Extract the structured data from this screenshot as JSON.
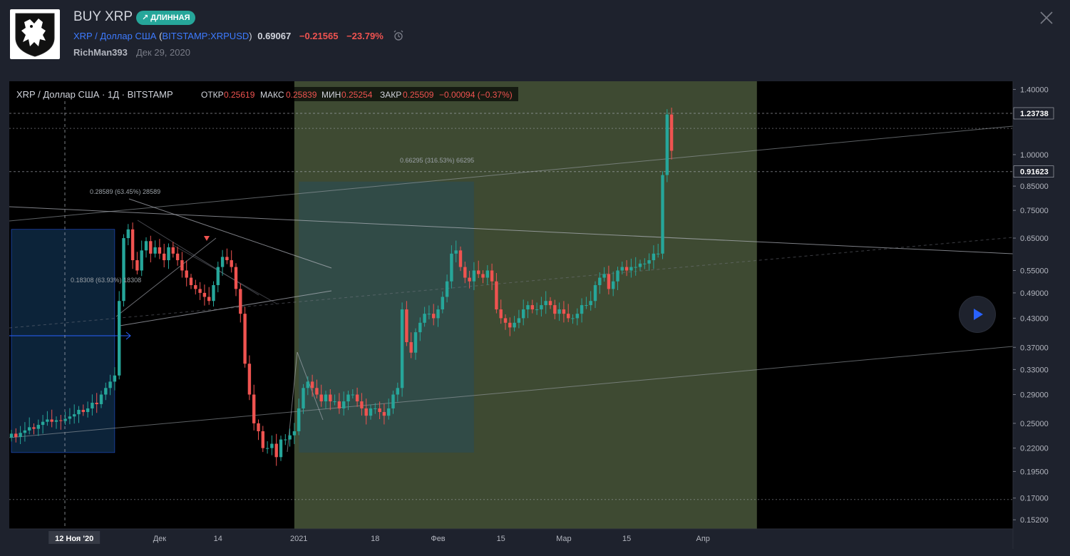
{
  "header": {
    "title": "BUY XRP",
    "badge": "↗ ДЛИННАЯ",
    "symbol_name": "XRP / Доллар США",
    "paren_open": "(",
    "symbol_ticker": "BITSTAMP:XRPUSD",
    "paren_close": ")",
    "price": "0.69067",
    "change": "−0.21565",
    "change_pct": "−23.79%",
    "author": "RichMan393",
    "date": "Дек 29, 2020"
  },
  "legend": {
    "symbol": "XRP / Доллар США · 1Д · BITSTAMP",
    "open_label": "ОТКР",
    "open_value": "0.25619",
    "high_label": "МАКС",
    "high_value": "0.25839",
    "low_label": "МИН",
    "low_value": "0.25254",
    "close_label": "ЗАКР",
    "close_value": "0.25509",
    "change": "−0.00094 (−0.37%)"
  },
  "icons": {
    "alarm": "alarm-clock-icon",
    "close": "close-icon",
    "play": "play-icon",
    "logo": "lion-crest-logo"
  },
  "colors": {
    "up": "#26a69a",
    "down": "#ef5350",
    "long_zone": "#3e4a32",
    "teal_box": "#2f4b4b",
    "blue_box": "#0f2a44",
    "accent_blue": "#2962ff"
  },
  "chart_data": {
    "type": "candlestick",
    "symbol": "XRP / Доллар США",
    "interval": "1Д",
    "exchange": "BITSTAMP",
    "y_scale": "log",
    "ylim": [
      0.145,
      1.46
    ],
    "y_ticks": [
      "1.40000",
      "1.23738",
      "1.00000",
      "0.91623",
      "0.85000",
      "0.75000",
      "0.65000",
      "0.55000",
      "0.49000",
      "0.43000",
      "0.37000",
      "0.33000",
      "0.29000",
      "0.25000",
      "0.22000",
      "0.19500",
      "0.17000",
      "0.15200"
    ],
    "y_tick_values": [
      1.4,
      1.23738,
      1.0,
      0.91623,
      0.85,
      0.75,
      0.65,
      0.55,
      0.49,
      0.43,
      0.37,
      0.33,
      0.29,
      0.25,
      0.22,
      0.195,
      0.17,
      0.152
    ],
    "highlighted_prices": [
      "1.23738",
      "0.91623"
    ],
    "x_labels": [
      "12 Ноя '20",
      "Дек",
      "14",
      "2021",
      "18",
      "Фев",
      "15",
      "Мар",
      "15",
      "Апр"
    ],
    "x_label_dates": [
      "2020-11-12",
      "2020-12-01",
      "2020-12-14",
      "2021-01-01",
      "2021-01-18",
      "2021-02-01",
      "2021-02-15",
      "2021-03-01",
      "2021-03-15",
      "2021-04-01"
    ],
    "annotations": [
      "0.28589 (63.45%) 28589",
      "0.18308 (63.93%) 18308",
      "0.66295 (316.53%) 66295"
    ],
    "closes_first_date": "2020-10-29",
    "closes": [
      0.237,
      0.233,
      0.238,
      0.241,
      0.245,
      0.243,
      0.248,
      0.252,
      0.255,
      0.252,
      0.254,
      0.253,
      0.256,
      0.259,
      0.262,
      0.268,
      0.265,
      0.27,
      0.278,
      0.276,
      0.29,
      0.3,
      0.31,
      0.32,
      0.47,
      0.65,
      0.68,
      0.58,
      0.55,
      0.61,
      0.64,
      0.6,
      0.62,
      0.6,
      0.58,
      0.62,
      0.6,
      0.58,
      0.55,
      0.53,
      0.51,
      0.5,
      0.49,
      0.48,
      0.47,
      0.51,
      0.56,
      0.59,
      0.58,
      0.56,
      0.5,
      0.44,
      0.34,
      0.29,
      0.25,
      0.24,
      0.22,
      0.22,
      0.225,
      0.21,
      0.23,
      0.23,
      0.235,
      0.24,
      0.27,
      0.3,
      0.31,
      0.3,
      0.29,
      0.28,
      0.29,
      0.28,
      0.28,
      0.27,
      0.28,
      0.29,
      0.29,
      0.28,
      0.27,
      0.26,
      0.27,
      0.27,
      0.265,
      0.26,
      0.27,
      0.29,
      0.3,
      0.45,
      0.38,
      0.36,
      0.4,
      0.42,
      0.44,
      0.44,
      0.43,
      0.45,
      0.48,
      0.52,
      0.6,
      0.61,
      0.56,
      0.53,
      0.52,
      0.55,
      0.54,
      0.53,
      0.55,
      0.52,
      0.45,
      0.43,
      0.42,
      0.41,
      0.42,
      0.43,
      0.45,
      0.46,
      0.45,
      0.45,
      0.46,
      0.47,
      0.46,
      0.44,
      0.45,
      0.44,
      0.43,
      0.43,
      0.44,
      0.46,
      0.46,
      0.47,
      0.51,
      0.53,
      0.54,
      0.5,
      0.52,
      0.55,
      0.56,
      0.55,
      0.56,
      0.56,
      0.57,
      0.57,
      0.58,
      0.6,
      0.6,
      0.9,
      1.23,
      1.02
    ],
    "zones": [
      {
        "name": "long-position",
        "from": "2020-12-31",
        "to": "2021-04-13",
        "from_price": 0.145,
        "to_price": 1.46
      },
      {
        "name": "price-range-1",
        "from": "2021-01-01",
        "to": "2021-02-09",
        "from_price": 0.215,
        "to_price": 0.87
      },
      {
        "name": "price-range-2",
        "from": "2020-10-29",
        "to": "2020-11-21",
        "from_price": 0.215,
        "to_price": 0.68
      }
    ],
    "legend_placement": "top-left",
    "grid": false
  }
}
